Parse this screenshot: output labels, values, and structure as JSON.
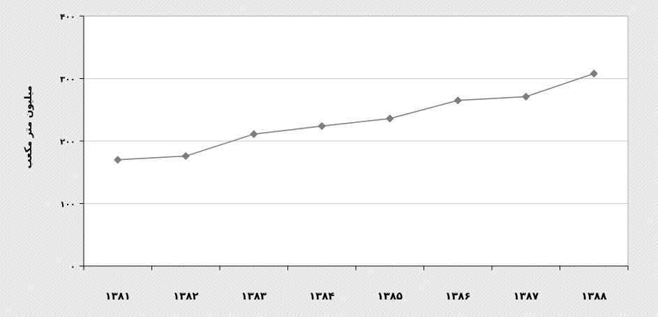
{
  "chart_data": {
    "type": "line",
    "title": "",
    "xlabel": "",
    "ylabel": "میلیون متر مکعب",
    "categories": [
      "۱۳۸۱",
      "۱۳۸۲",
      "۱۳۸۳",
      "۱۳۸۴",
      "۱۳۸۵",
      "۱۳۸۶",
      "۱۳۸۷",
      "۱۳۸۸"
    ],
    "series": [
      {
        "values": [
          170,
          176,
          211,
          224,
          236,
          265,
          271,
          308
        ]
      }
    ],
    "ylim": [
      0,
      400
    ],
    "yticks": [
      0,
      100,
      200,
      300,
      400
    ],
    "ytick_labels": [
      "۰",
      "۱۰۰",
      "۲۰۰",
      "۳۰۰",
      "۴۰۰"
    ],
    "grid": true,
    "legend": "none",
    "colors": {
      "line": "#7f7f7f",
      "marker": "#7f7f7f",
      "plot_background": "#ffffff",
      "grid": "#c8c8c8",
      "axis": "#000000"
    }
  }
}
